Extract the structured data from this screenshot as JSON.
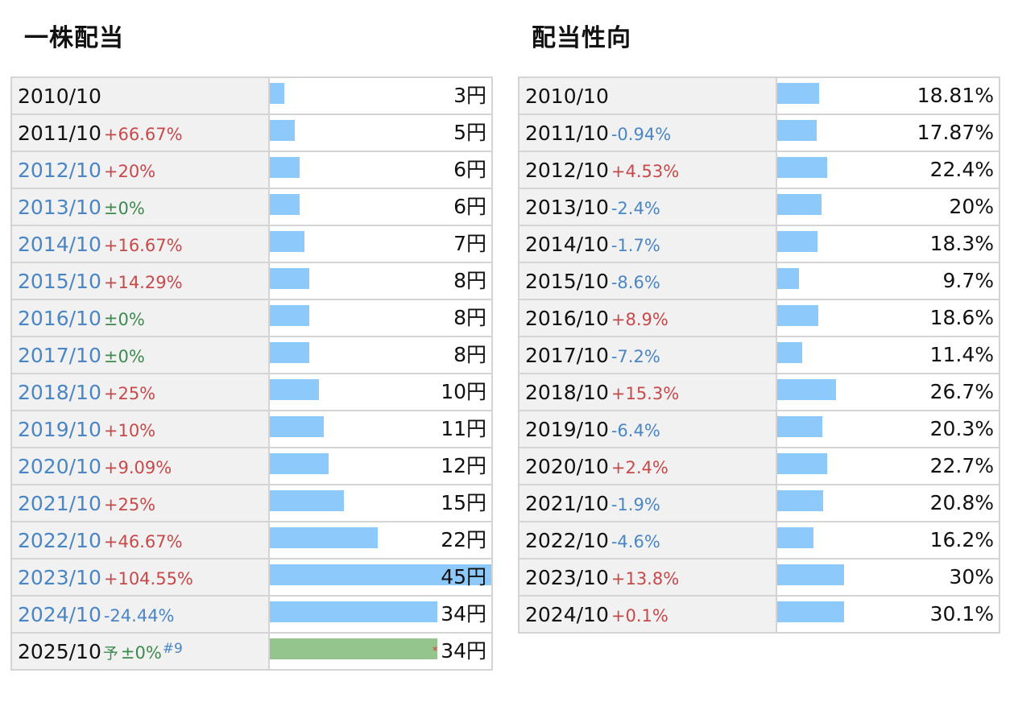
{
  "chart_data": [
    {
      "type": "bar",
      "title": "一株配当",
      "unit": "円",
      "xlim": [
        0,
        45
      ],
      "rows": [
        {
          "year": "2010/10",
          "change": "",
          "change_type": "",
          "value": 3,
          "display": "3円",
          "link": false
        },
        {
          "year": "2011/10",
          "change": "+66.67%",
          "change_type": "up",
          "value": 5,
          "display": "5円",
          "link": false
        },
        {
          "year": "2012/10",
          "change": "+20%",
          "change_type": "up",
          "value": 6,
          "display": "6円",
          "link": true
        },
        {
          "year": "2013/10",
          "change": "±0%",
          "change_type": "flat",
          "value": 6,
          "display": "6円",
          "link": true
        },
        {
          "year": "2014/10",
          "change": "+16.67%",
          "change_type": "up",
          "value": 7,
          "display": "7円",
          "link": true
        },
        {
          "year": "2015/10",
          "change": "+14.29%",
          "change_type": "up",
          "value": 8,
          "display": "8円",
          "link": true
        },
        {
          "year": "2016/10",
          "change": "±0%",
          "change_type": "flat",
          "value": 8,
          "display": "8円",
          "link": true
        },
        {
          "year": "2017/10",
          "change": "±0%",
          "change_type": "flat",
          "value": 8,
          "display": "8円",
          "link": true
        },
        {
          "year": "2018/10",
          "change": "+25%",
          "change_type": "up",
          "value": 10,
          "display": "10円",
          "link": true
        },
        {
          "year": "2019/10",
          "change": "+10%",
          "change_type": "up",
          "value": 11,
          "display": "11円",
          "link": true
        },
        {
          "year": "2020/10",
          "change": "+9.09%",
          "change_type": "up",
          "value": 12,
          "display": "12円",
          "link": true
        },
        {
          "year": "2021/10",
          "change": "+25%",
          "change_type": "up",
          "value": 15,
          "display": "15円",
          "link": true
        },
        {
          "year": "2022/10",
          "change": "+46.67%",
          "change_type": "up",
          "value": 22,
          "display": "22円",
          "link": true
        },
        {
          "year": "2023/10",
          "change": "+104.55%",
          "change_type": "up",
          "value": 45,
          "display": "45円",
          "link": true
        },
        {
          "year": "2024/10",
          "change": "-24.44%",
          "change_type": "down",
          "value": 34,
          "display": "34円",
          "link": true
        },
        {
          "year": "2025/10",
          "forecast_mark": "予",
          "change": "±0%",
          "change_type": "flat",
          "note": "#9",
          "asterisk": "*",
          "value": 34,
          "display": "34円",
          "link": false,
          "forecast": true
        }
      ]
    },
    {
      "type": "bar",
      "title": "配当性向",
      "unit": "%",
      "xlim": [
        0,
        100
      ],
      "rows": [
        {
          "year": "2010/10",
          "change": "",
          "change_type": "",
          "value": 18.81,
          "display": "18.81%"
        },
        {
          "year": "2011/10",
          "change": "-0.94%",
          "change_type": "down",
          "value": 17.87,
          "display": "17.87%"
        },
        {
          "year": "2012/10",
          "change": "+4.53%",
          "change_type": "up",
          "value": 22.4,
          "display": "22.4%"
        },
        {
          "year": "2013/10",
          "change": "-2.4%",
          "change_type": "down",
          "value": 20,
          "display": "20%"
        },
        {
          "year": "2014/10",
          "change": "-1.7%",
          "change_type": "down",
          "value": 18.3,
          "display": "18.3%"
        },
        {
          "year": "2015/10",
          "change": "-8.6%",
          "change_type": "down",
          "value": 9.7,
          "display": "9.7%"
        },
        {
          "year": "2016/10",
          "change": "+8.9%",
          "change_type": "up",
          "value": 18.6,
          "display": "18.6%"
        },
        {
          "year": "2017/10",
          "change": "-7.2%",
          "change_type": "down",
          "value": 11.4,
          "display": "11.4%"
        },
        {
          "year": "2018/10",
          "change": "+15.3%",
          "change_type": "up",
          "value": 26.7,
          "display": "26.7%"
        },
        {
          "year": "2019/10",
          "change": "-6.4%",
          "change_type": "down",
          "value": 20.3,
          "display": "20.3%"
        },
        {
          "year": "2020/10",
          "change": "+2.4%",
          "change_type": "up",
          "value": 22.7,
          "display": "22.7%"
        },
        {
          "year": "2021/10",
          "change": "-1.9%",
          "change_type": "down",
          "value": 20.8,
          "display": "20.8%"
        },
        {
          "year": "2022/10",
          "change": "-4.6%",
          "change_type": "down",
          "value": 16.2,
          "display": "16.2%"
        },
        {
          "year": "2023/10",
          "change": "+13.8%",
          "change_type": "up",
          "value": 30,
          "display": "30%"
        },
        {
          "year": "2024/10",
          "change": "+0.1%",
          "change_type": "up",
          "value": 30.1,
          "display": "30.1%"
        }
      ]
    }
  ],
  "colors": {
    "bar": "#8ec9fb",
    "forecast_bar": "#93c58c",
    "up": "#c8494a",
    "down": "#4a86c4",
    "flat": "#3f8a4f",
    "link": "#4a86c4"
  }
}
